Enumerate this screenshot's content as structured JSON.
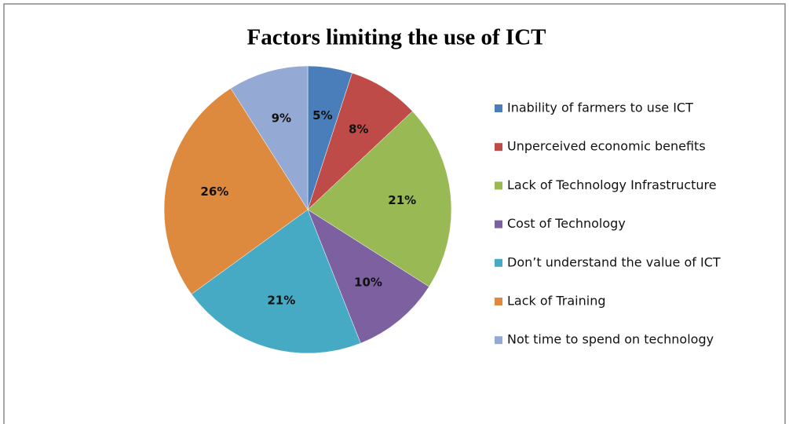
{
  "chart_data": {
    "type": "pie",
    "title": "Factors limiting the use of ICT",
    "categories": [
      "Inability of farmers to use ICT",
      "Unperceived economic benefits",
      "Lack of Technology Infrastructure",
      "Cost of Technology",
      "Don’t understand the value of ICT",
      "Lack of Training",
      "Not time to spend on technology"
    ],
    "values": [
      5,
      8,
      21,
      10,
      21,
      26,
      9
    ],
    "value_labels": [
      "5%",
      "8%",
      "21%",
      "10%",
      "21%",
      "26%",
      "9%"
    ],
    "colors": [
      "#4a7ebb",
      "#be4b48",
      "#98b954",
      "#7d60a0",
      "#46aac5",
      "#dd8a3f",
      "#94a9d4"
    ],
    "legend": "right"
  }
}
